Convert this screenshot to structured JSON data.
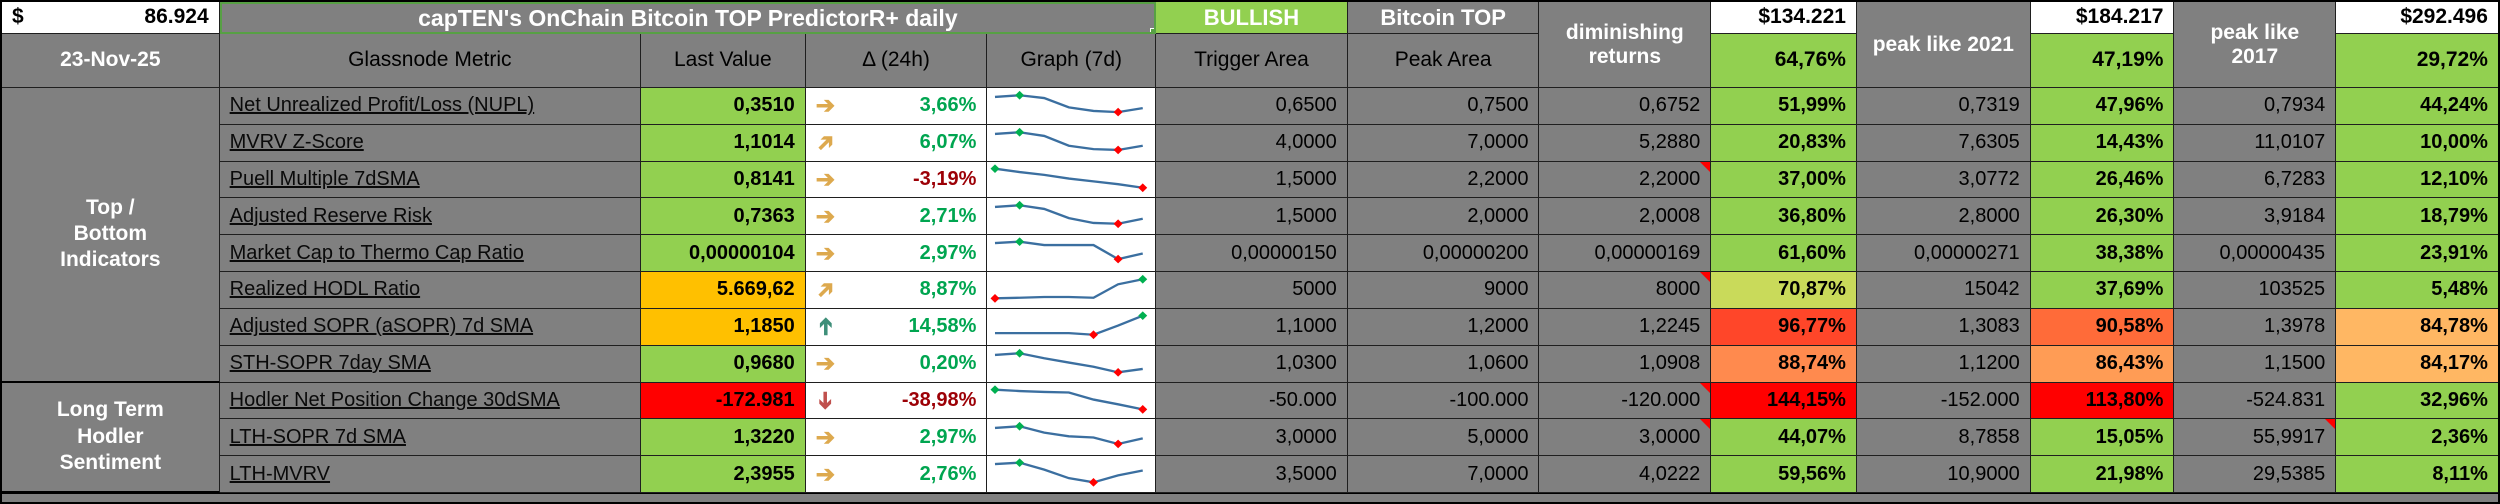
{
  "header": {
    "price": {
      "currency": "$",
      "value": "86.924"
    },
    "date": "23-Nov-25",
    "title": "capTEN's OnChain Bitcoin TOP PredictorR+ daily",
    "signal": "BULLISH",
    "bitcoin_top_label": "Bitcoin TOP",
    "columns": {
      "metric": "Glassnode Metric",
      "last_value": "Last Value",
      "delta": "Δ (24h)",
      "graph": "Graph (7d)",
      "trigger": "Trigger Area",
      "peak": "Peak Area"
    },
    "scenarios": [
      {
        "label": "diminishing returns",
        "price": "$134.221",
        "pct": "64,76%"
      },
      {
        "label": "peak like 2021",
        "price": "$184.217",
        "pct": "47,19%"
      },
      {
        "label": "peak like 2017",
        "price": "$292.496",
        "pct": "29,72%"
      }
    ]
  },
  "groups": [
    {
      "label": "Top / Bottom Indicators",
      "span": 8
    },
    {
      "label": "Long Term Hodler Sentiment",
      "span": 3
    }
  ],
  "colors": {
    "grid_gray": "#808080",
    "green": "#92D050",
    "amber": "#FFC000",
    "red": "#FF0000",
    "yellow_green": "#C9DA5A",
    "red_orange": "#FF4629",
    "orange": "#FF8A4E",
    "mid_orange": "#FF6B39",
    "light_orange": "#FFB763",
    "delta_up_text": "#00A550",
    "delta_down_text": "#9C0006",
    "arrow_side": "#DDA94E",
    "arrow_up": "#3E8F79",
    "arrow_down": "#C0504D",
    "spark_line": "#3B6FA0",
    "spark_high": "#00B050",
    "spark_low": "#FF0000"
  },
  "rows": [
    {
      "metric": "Net Unrealized Profit/Loss (NUPL)",
      "last_value": "0,3510",
      "value_bg": "#92D050",
      "arrow": "right",
      "delta": "3,66%",
      "delta_dir": "up",
      "trigger": "0,6500",
      "peak": "0,7500",
      "dim_value": "0,6752",
      "dim_note": false,
      "dim_pct": "51,99%",
      "dim_pct_bg": "#92D050",
      "v2021": "0,7319",
      "pct2021": "47,96%",
      "pct2021_bg": "#92D050",
      "v2017": "0,7934",
      "note2017": false,
      "pct2017": "44,24%",
      "pct2017_bg": "#92D050",
      "spark": {
        "y": [
          18,
          12,
          22,
          55,
          68,
          72,
          58
        ],
        "high": 1,
        "low": 5
      }
    },
    {
      "metric": "MVRV Z-Score",
      "last_value": "1,1014",
      "value_bg": "#92D050",
      "arrow": "upright",
      "delta": "6,07%",
      "delta_dir": "up",
      "trigger": "4,0000",
      "peak": "7,0000",
      "dim_value": "5,2880",
      "dim_note": false,
      "dim_pct": "20,83%",
      "dim_pct_bg": "#92D050",
      "v2021": "7,6305",
      "pct2021": "14,43%",
      "pct2021_bg": "#92D050",
      "v2017": "11,0107",
      "note2017": false,
      "pct2017": "10,00%",
      "pct2017_bg": "#92D050",
      "spark": {
        "y": [
          18,
          12,
          25,
          60,
          72,
          75,
          60
        ],
        "high": 1,
        "low": 5
      }
    },
    {
      "metric": "Puell Multiple 7dSMA",
      "last_value": "0,8141",
      "value_bg": "#92D050",
      "arrow": "right",
      "delta": "-3,19%",
      "delta_dir": "down",
      "trigger": "1,5000",
      "peak": "2,2000",
      "dim_value": "2,2000",
      "dim_note": true,
      "dim_pct": "37,00%",
      "dim_pct_bg": "#92D050",
      "v2021": "3,0772",
      "pct2021": "26,46%",
      "pct2021_bg": "#92D050",
      "v2017": "6,7283",
      "note2017": false,
      "pct2017": "12,10%",
      "pct2017_bg": "#92D050",
      "spark": {
        "y": [
          10,
          22,
          32,
          45,
          55,
          65,
          78
        ],
        "high": 0,
        "low": 6
      }
    },
    {
      "metric": "Adjusted Reserve Risk",
      "last_value": "0,7363",
      "value_bg": "#92D050",
      "arrow": "right",
      "delta": "2,71%",
      "delta_dir": "up",
      "trigger": "1,5000",
      "peak": "2,0000",
      "dim_value": "2,0008",
      "dim_note": false,
      "dim_pct": "36,80%",
      "dim_pct_bg": "#92D050",
      "v2021": "2,8000",
      "pct2021": "26,30%",
      "pct2021_bg": "#92D050",
      "v2017": "3,9184",
      "note2017": false,
      "pct2017": "18,79%",
      "pct2017_bg": "#92D050",
      "spark": {
        "y": [
          18,
          12,
          25,
          58,
          75,
          78,
          60
        ],
        "high": 1,
        "low": 5
      }
    },
    {
      "metric": "Market Cap to Thermo Cap Ratio",
      "last_value": "0,00000104",
      "value_bg": "#92D050",
      "arrow": "right",
      "delta": "2,97%",
      "delta_dir": "up",
      "trigger": "0,00000150",
      "peak": "0,00000200",
      "dim_value": "0,00000169",
      "dim_note": false,
      "dim_pct": "61,60%",
      "dim_pct_bg": "#92D050",
      "v2021": "0,00000271",
      "pct2021": "38,38%",
      "pct2021_bg": "#92D050",
      "v2017": "0,00000435",
      "note2017": false,
      "pct2017": "23,91%",
      "pct2017_bg": "#92D050",
      "spark": {
        "y": [
          15,
          10,
          22,
          22,
          22,
          72,
          52
        ],
        "high": 1,
        "low": 5
      }
    },
    {
      "metric": "Realized HODL Ratio",
      "last_value": "5.669,62",
      "value_bg": "#FFC000",
      "arrow": "upright",
      "delta": "8,87%",
      "delta_dir": "up",
      "trigger": "5000",
      "peak": "9000",
      "dim_value": "8000",
      "dim_note": true,
      "dim_pct": "70,87%",
      "dim_pct_bg": "#C9DA5A",
      "v2021": "15042",
      "pct2021": "37,69%",
      "pct2021_bg": "#92D050",
      "v2017": "103525",
      "note2017": false,
      "pct2017": "5,48%",
      "pct2017_bg": "#92D050",
      "spark": {
        "y": [
          80,
          78,
          75,
          75,
          78,
          30,
          12
        ],
        "high": 6,
        "low": 0
      }
    },
    {
      "metric": "Adjusted SOPR (aSOPR) 7d SMA",
      "last_value": "1,1850",
      "value_bg": "#FFC000",
      "arrow": "up",
      "delta": "14,58%",
      "delta_dir": "up",
      "trigger": "1,1000",
      "peak": "1,2000",
      "dim_value": "1,2245",
      "dim_note": false,
      "dim_pct": "96,77%",
      "dim_pct_bg": "#FF4629",
      "v2021": "1,3083",
      "pct2021": "90,58%",
      "pct2021_bg": "#FF6B39",
      "v2017": "1,3978",
      "note2017": false,
      "pct2017": "84,78%",
      "pct2017_bg": "#FFB763",
      "spark": {
        "y": [
          72,
          72,
          72,
          72,
          78,
          45,
          10
        ],
        "high": 6,
        "low": 4
      }
    },
    {
      "metric": "STH-SOPR 7day SMA",
      "last_value": "0,9680",
      "value_bg": "#92D050",
      "arrow": "right",
      "delta": "0,20%",
      "delta_dir": "up",
      "trigger": "1,0300",
      "peak": "1,0600",
      "dim_value": "1,0908",
      "dim_note": false,
      "dim_pct": "88,74%",
      "dim_pct_bg": "#FF8A4E",
      "v2021": "1,1200",
      "pct2021": "86,43%",
      "pct2021_bg": "#FF9C55",
      "v2017": "1,1500",
      "note2017": false,
      "pct2017": "84,17%",
      "pct2017_bg": "#FFB763",
      "spark": {
        "y": [
          18,
          12,
          30,
          45,
          60,
          80,
          68
        ],
        "high": 1,
        "low": 5
      }
    },
    {
      "metric": "Hodler Net Position Change 30dSMA",
      "last_value": "-172.981",
      "value_bg": "#FF0000",
      "arrow": "down",
      "delta": "-38,98%",
      "delta_dir": "down",
      "trigger": "-50.000",
      "peak": "-100.000",
      "dim_value": "-120.000",
      "dim_note": true,
      "dim_pct": "144,15%",
      "dim_pct_bg": "#FF0000",
      "v2021": "-152.000",
      "pct2021": "113,80%",
      "pct2021_bg": "#FF0000",
      "v2017": "-524.831",
      "note2017": false,
      "pct2017": "32,96%",
      "pct2017_bg": "#92D050",
      "spark": {
        "y": [
          10,
          15,
          18,
          20,
          45,
          62,
          80
        ],
        "high": 0,
        "low": 6
      }
    },
    {
      "metric": "LTH-SOPR 7d SMA",
      "last_value": "1,3220",
      "value_bg": "#92D050",
      "arrow": "right",
      "delta": "2,97%",
      "delta_dir": "up",
      "trigger": "3,0000",
      "peak": "5,0000",
      "dim_value": "3,0000",
      "dim_note": true,
      "dim_pct": "44,07%",
      "dim_pct_bg": "#92D050",
      "v2021": "8,7858",
      "pct2021": "15,05%",
      "pct2021_bg": "#92D050",
      "v2017": "55,9917",
      "note2017": true,
      "pct2017": "2,36%",
      "pct2017_bg": "#92D050",
      "spark": {
        "y": [
          18,
          12,
          35,
          48,
          52,
          75,
          55
        ],
        "high": 1,
        "low": 5
      }
    },
    {
      "metric": "LTH-MVRV",
      "last_value": "2,3955",
      "value_bg": "#92D050",
      "arrow": "right",
      "delta": "2,76%",
      "delta_dir": "up",
      "trigger": "3,5000",
      "peak": "7,0000",
      "dim_value": "4,0222",
      "dim_note": false,
      "dim_pct": "59,56%",
      "dim_pct_bg": "#92D050",
      "v2021": "10,9000",
      "pct2021": "21,98%",
      "pct2021_bg": "#92D050",
      "v2017": "29,5385",
      "note2017": false,
      "pct2017": "8,11%",
      "pct2017_bg": "#92D050",
      "spark": {
        "y": [
          15,
          10,
          35,
          65,
          80,
          55,
          38
        ],
        "high": 1,
        "low": 4
      }
    }
  ]
}
